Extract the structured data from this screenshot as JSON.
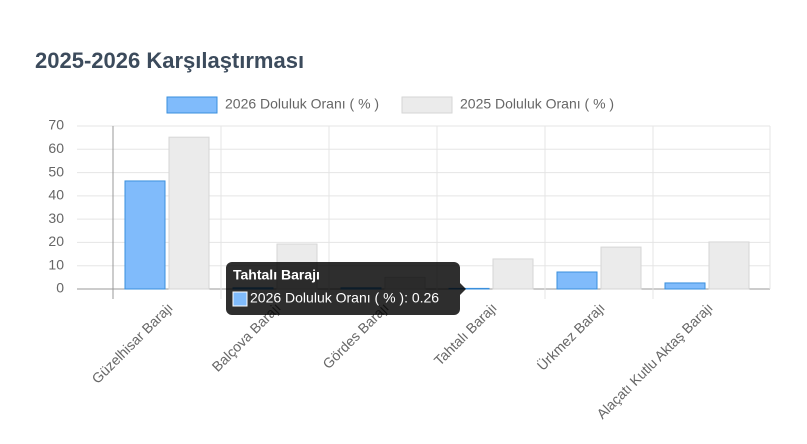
{
  "chart_data": {
    "type": "bar",
    "title": "2025-2026 Karşılaştırması",
    "categories": [
      "Güzelhisar Barajı",
      "Balçova Barajı",
      "Gördes Barajı",
      "Tahtalı Barajı",
      "Ürkmez Barajı",
      "Alaçatı Kutlu Aktaş Barajı"
    ],
    "series": [
      {
        "name": "2026 Doluluk Oranı ( % )",
        "color": "#80bbfb",
        "values": [
          46.4,
          0.5,
          0.5,
          0.26,
          7.3,
          2.6
        ]
      },
      {
        "name": "2025 Doluluk Oranı ( % )",
        "color": "#ebebeb",
        "values": [
          65.2,
          19.3,
          5,
          12.9,
          18,
          20.2
        ]
      }
    ],
    "ylim": [
      0,
      70
    ],
    "yticks": [
      0,
      10,
      20,
      30,
      40,
      50,
      60,
      70
    ],
    "grid": true,
    "legend": "top",
    "tooltip": {
      "title": "Tahtalı Barajı",
      "body": "2026 Doluluk Oranı ( % ): 0.26"
    }
  }
}
